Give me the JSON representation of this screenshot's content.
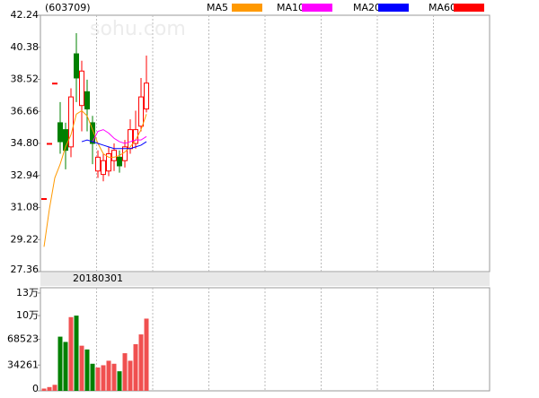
{
  "chart_data": [
    {
      "type": "candlestick",
      "title": "(603709)",
      "watermark": "sohu.com",
      "categories": [
        null,
        null,
        null,
        null,
        null,
        null,
        null,
        null,
        null,
        null,
        "20180301",
        null,
        null,
        null,
        null,
        null,
        null,
        null,
        null,
        null
      ],
      "open": [
        31.6,
        34.8,
        38.3,
        36.0,
        35.6,
        34.6,
        40.0,
        37.0,
        37.8,
        36.0,
        33.2,
        33.0,
        33.2,
        33.8,
        34.0,
        33.8,
        34.5,
        34.8,
        35.8,
        36.8
      ],
      "high": [
        31.6,
        34.8,
        38.3,
        37.2,
        36.0,
        38.0,
        41.2,
        39.6,
        38.5,
        36.4,
        34.4,
        34.2,
        34.6,
        34.8,
        34.4,
        35.0,
        36.2,
        36.7,
        38.6,
        39.9
      ],
      "low": [
        31.6,
        34.8,
        38.3,
        34.2,
        33.3,
        34.0,
        37.2,
        35.5,
        35.5,
        33.6,
        32.8,
        32.6,
        32.9,
        33.2,
        33.1,
        33.4,
        34.2,
        34.5,
        35.5,
        36.6
      ],
      "close": [
        31.6,
        34.8,
        38.3,
        34.9,
        34.4,
        37.5,
        38.6,
        39.0,
        36.8,
        34.8,
        34.0,
        33.8,
        34.2,
        34.4,
        33.5,
        34.6,
        35.6,
        35.6,
        37.5,
        38.3
      ],
      "series": [
        {
          "name": "MA5",
          "color": "#ff9900",
          "values": [
            28.8,
            31.0,
            32.8,
            33.6,
            34.6,
            35.3,
            36.5,
            36.7,
            36.4,
            35.6,
            34.8,
            34.2,
            34.0,
            34.0,
            34.1,
            34.3,
            34.6,
            35.0,
            35.6,
            36.5
          ]
        },
        {
          "name": "MA10",
          "color": "#ff00ff",
          "values": [
            null,
            null,
            null,
            null,
            null,
            null,
            null,
            null,
            null,
            34.9,
            35.5,
            35.6,
            35.4,
            35.1,
            34.9,
            34.8,
            34.9,
            35.0,
            35.0,
            35.2
          ]
        },
        {
          "name": "MA20",
          "color": "#0000ff",
          "values": [
            null,
            null,
            null,
            null,
            null,
            null,
            null,
            34.9,
            35.0,
            34.9,
            34.8,
            34.7,
            34.6,
            34.5,
            34.5,
            34.5,
            34.5,
            34.6,
            34.7,
            34.9
          ]
        },
        {
          "name": "MA60",
          "color": "#ff0000",
          "values": [
            null,
            null,
            null,
            null,
            null,
            null,
            null,
            null,
            null,
            null,
            null,
            null,
            null,
            null,
            null,
            null,
            null,
            null,
            null,
            null
          ]
        }
      ],
      "up_color": "#ff0000",
      "down_color": "#008000",
      "ylim": [
        27.36,
        42.24
      ],
      "yticks": [
        42.24,
        40.38,
        38.52,
        36.66,
        {
          "value": 34.8,
          "label": "34.80"
        },
        32.94,
        31.08,
        29.22,
        27.36
      ]
    },
    {
      "type": "bar",
      "values": [
        3000,
        5000,
        8000,
        72000,
        65000,
        98000,
        100000,
        60000,
        55000,
        36000,
        31000,
        34000,
        40000,
        36000,
        26000,
        50000,
        40000,
        62000,
        75000,
        96000
      ],
      "ylim": [
        0,
        137046
      ],
      "yticks": [
        0,
        34261,
        68523,
        {
          "value": 100000,
          "label": "10万"
        },
        {
          "value": 130000,
          "label": "13万"
        }
      ]
    }
  ]
}
